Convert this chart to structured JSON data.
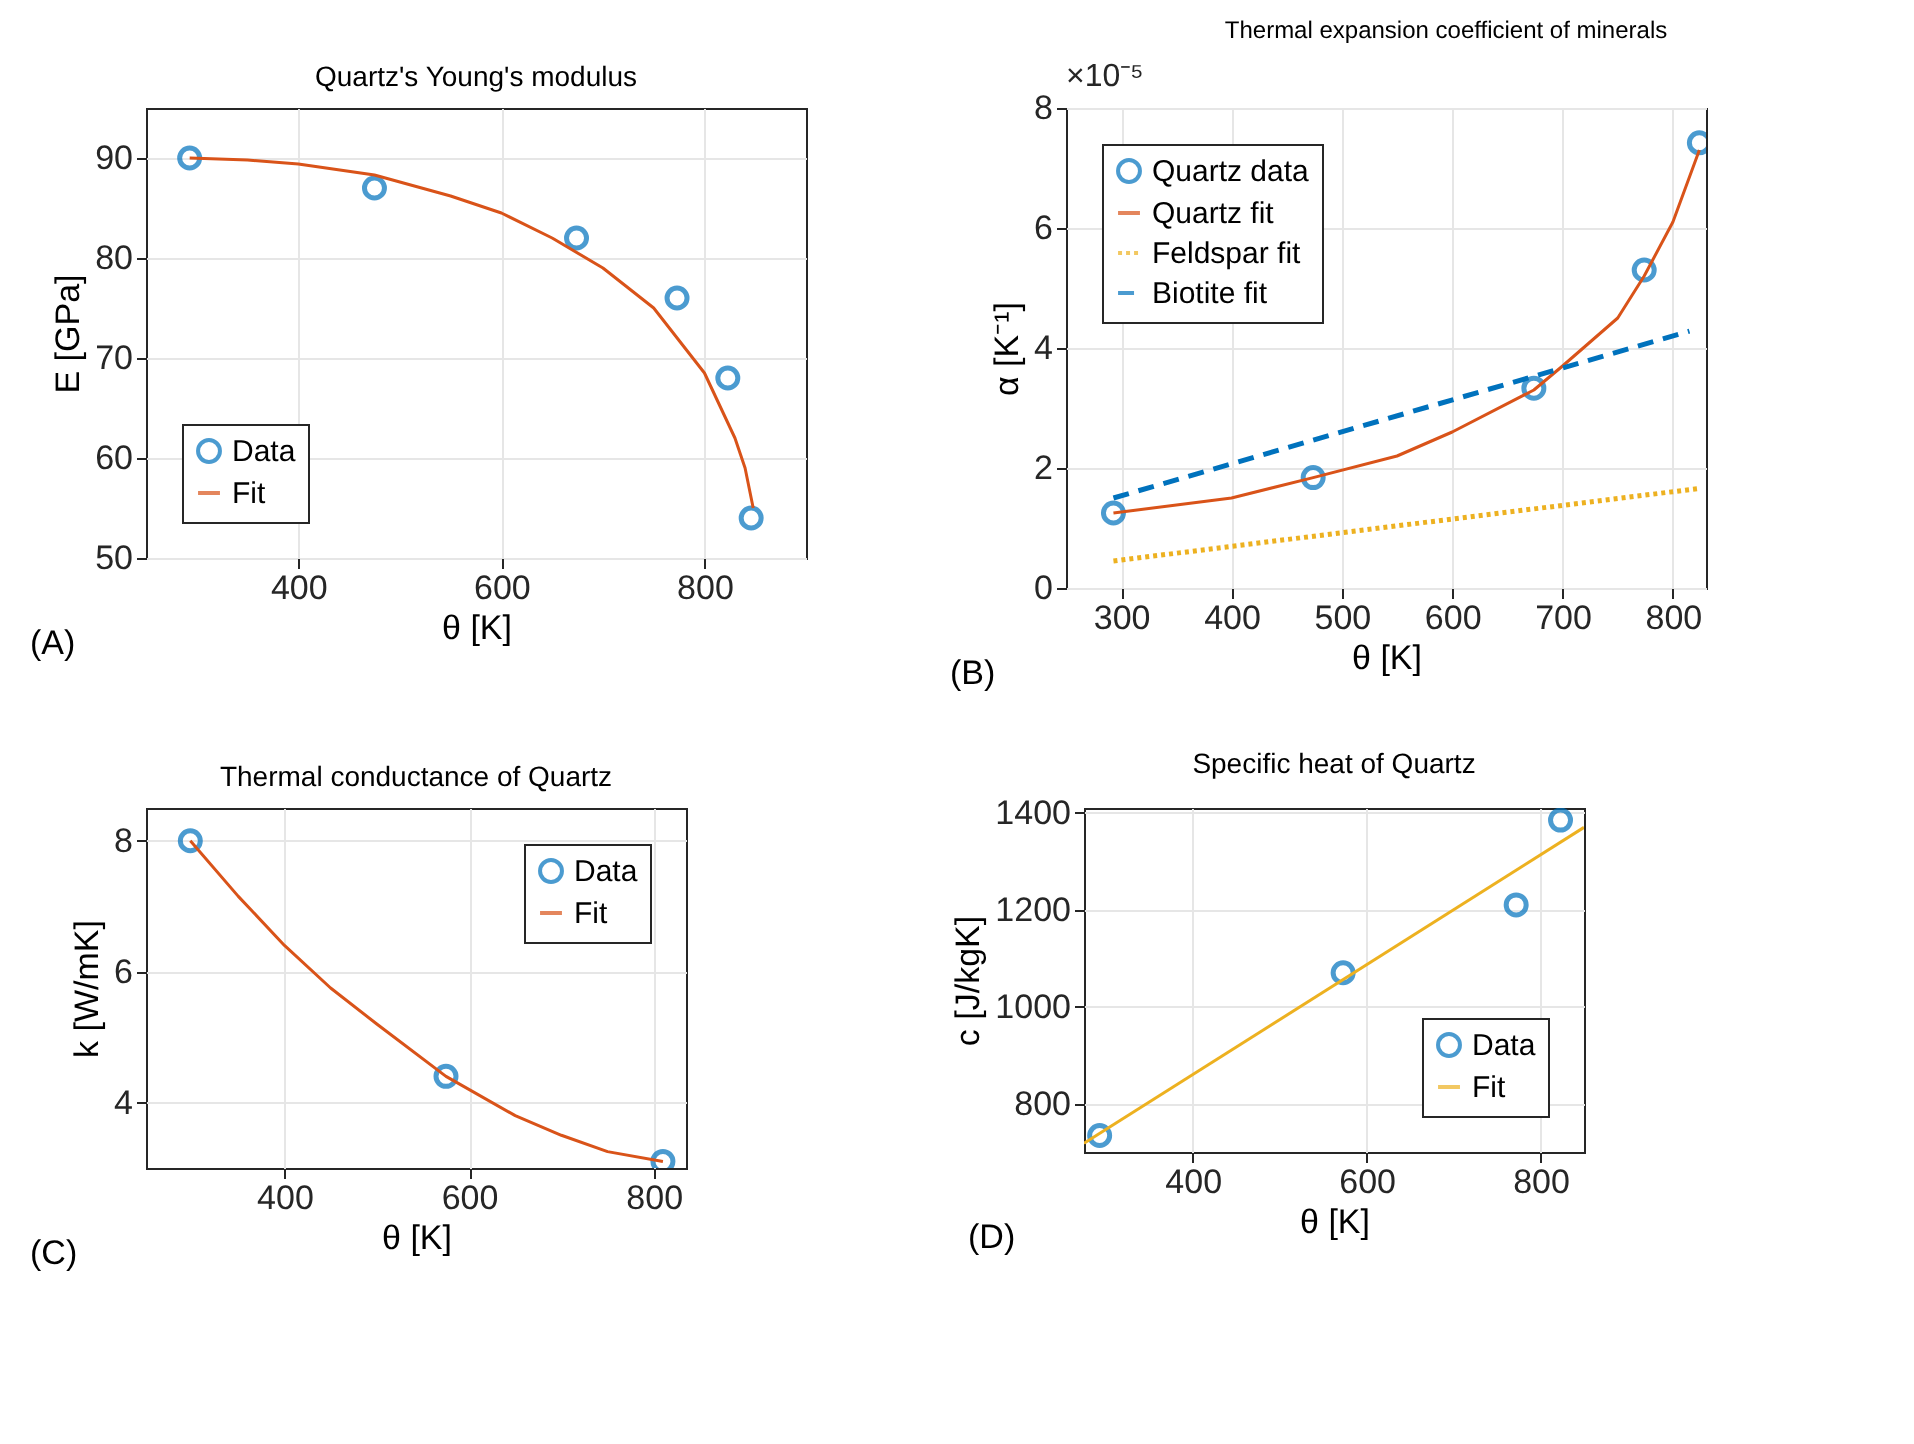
{
  "chart_data": [
    {
      "type": "line",
      "title": "Quartz's Young's modulus",
      "xlabel": "θ [K]",
      "ylabel": "E [GPa]",
      "annotations": [
        "(A)"
      ],
      "xlim": [
        250,
        900
      ],
      "ylim": [
        50,
        95
      ],
      "xticks": [
        400,
        600,
        800
      ],
      "yticks": [
        50,
        60,
        70,
        80,
        90
      ],
      "grid": true,
      "legend": "bottom left",
      "series": [
        {
          "name": "Data",
          "type": "scatter",
          "marker": "circle",
          "color": "#0072bd",
          "x": [
            293,
            475,
            674,
            773,
            823,
            846
          ],
          "values": [
            90,
            87,
            82,
            76,
            68,
            54
          ]
        },
        {
          "name": "Fit",
          "type": "line",
          "line_style": "solid",
          "color": "#d95319",
          "x": [
            293,
            350,
            400,
            475,
            550,
            600,
            650,
            700,
            750,
            800,
            830,
            840,
            848
          ],
          "values": [
            90,
            89.8,
            89.4,
            88.3,
            86.2,
            84.5,
            82,
            79,
            75,
            68.5,
            62,
            59,
            55
          ]
        }
      ]
    },
    {
      "type": "line",
      "title": "Thermal expansion coefficient of minerals",
      "xlabel": "θ [K]",
      "ylabel": "α [K⁻¹]",
      "annotations": [
        "×10⁻⁵",
        "(B)"
      ],
      "xlim": [
        250,
        830
      ],
      "ylim": [
        0,
        8
      ],
      "xticks": [
        300,
        400,
        500,
        600,
        700,
        800
      ],
      "yticks": [
        0,
        2,
        4,
        6,
        8
      ],
      "grid": true,
      "legend": "top left",
      "series": [
        {
          "name": "Quartz data",
          "type": "scatter",
          "marker": "circle",
          "color": "#0072bd",
          "x": [
            293,
            474,
            674,
            774,
            824
          ],
          "values": [
            1.25,
            1.84,
            3.33,
            5.3,
            7.42
          ]
        },
        {
          "name": "Quartz fit",
          "type": "line",
          "line_style": "solid",
          "color": "#d95319",
          "x": [
            293,
            400,
            474,
            550,
            600,
            674,
            700,
            750,
            774,
            800,
            824
          ],
          "values": [
            1.25,
            1.5,
            1.84,
            2.2,
            2.6,
            3.3,
            3.7,
            4.5,
            5.2,
            6.1,
            7.3
          ]
        },
        {
          "name": "Feldspar fit",
          "type": "line",
          "line_style": "dotted",
          "color": "#edb120",
          "x": [
            293,
            824
          ],
          "values": [
            0.45,
            1.66
          ]
        },
        {
          "name": "Biotite fit",
          "type": "line",
          "line_style": "dashed",
          "color": "#0072bd",
          "x": [
            293,
            815
          ],
          "values": [
            1.5,
            4.28
          ]
        }
      ]
    },
    {
      "type": "line",
      "title": "Thermal conductance of Quartz",
      "xlabel": "θ [K]",
      "ylabel": "k [W/mK]",
      "annotations": [
        "(C)"
      ],
      "xlim": [
        250,
        835
      ],
      "ylim": [
        3,
        8.5
      ],
      "xticks": [
        400,
        600,
        800
      ],
      "yticks": [
        4,
        6,
        8
      ],
      "grid": true,
      "legend": "top right",
      "series": [
        {
          "name": "Data",
          "type": "scatter",
          "marker": "circle",
          "color": "#0072bd",
          "x": [
            298,
            575,
            810
          ],
          "values": [
            8,
            4.4,
            3.1
          ]
        },
        {
          "name": "Fit",
          "type": "line",
          "line_style": "solid",
          "color": "#d95319",
          "x": [
            298,
            350,
            400,
            450,
            500,
            575,
            650,
            700,
            750,
            810
          ],
          "values": [
            8,
            7.15,
            6.4,
            5.75,
            5.2,
            4.4,
            3.8,
            3.5,
            3.25,
            3.1
          ]
        }
      ]
    },
    {
      "type": "line",
      "title": "Specific heat of Quartz",
      "xlabel": "θ [K]",
      "ylabel": "c [J/kgK]",
      "annotations": [
        "(D)"
      ],
      "xlim": [
        275,
        850
      ],
      "ylim": [
        700,
        1410
      ],
      "xticks": [
        400,
        600,
        800
      ],
      "yticks": [
        800,
        {
          "value": 1000,
          "label": "1000"
        },
        {
          "value": 1200,
          "label": "1200"
        },
        {
          "value": 1400,
          "label": "1400"
        }
      ],
      "grid": true,
      "legend": "bottom right",
      "series": [
        {
          "name": "Data",
          "type": "scatter",
          "marker": "circle",
          "color": "#0072bd",
          "x": [
            293,
            573,
            772,
            823
          ],
          "values": [
            734,
            1070,
            1210,
            1385
          ]
        },
        {
          "name": "Fit",
          "type": "line",
          "line_style": "solid",
          "color": "#edb120",
          "x": [
            275,
            850
          ],
          "values": [
            718,
            1370
          ]
        }
      ]
    }
  ]
}
